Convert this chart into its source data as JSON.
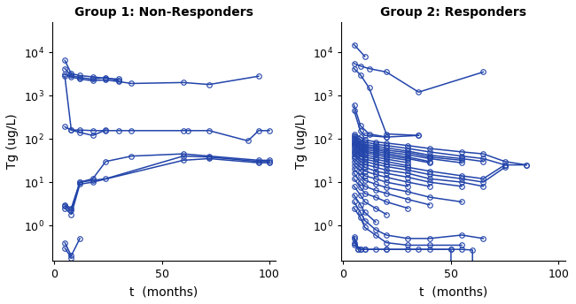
{
  "title1": "Group 1: Non-Responders",
  "title2": "Group 2: Responders",
  "xlabel": "t  (months)",
  "ylabel": "Tg (ug/L)",
  "line_color": "#2244aa",
  "marker": "o",
  "markersize": 4,
  "linewidth": 1.1,
  "ylim_log": [
    0.15,
    50000
  ],
  "xlim": [
    -1,
    103
  ],
  "group1_series": [
    {
      "t": [
        5,
        8,
        12,
        18,
        24,
        30
      ],
      "y": [
        6500,
        3200,
        2900,
        2700,
        2500,
        2400
      ]
    },
    {
      "t": [
        5,
        8,
        12,
        18,
        24,
        30
      ],
      "y": [
        4200,
        2900,
        2600,
        2400,
        2600,
        2200
      ]
    },
    {
      "t": [
        5,
        8,
        12,
        18,
        24,
        30,
        36,
        60,
        72,
        95
      ],
      "y": [
        3100,
        2700,
        2400,
        2200,
        2300,
        2100,
        1900,
        2000,
        1800,
        2800
      ]
    },
    {
      "t": [
        5,
        8,
        12,
        18,
        24
      ],
      "y": [
        2800,
        160,
        140,
        120,
        160
      ]
    },
    {
      "t": [
        5,
        8,
        12,
        18,
        24,
        30,
        36,
        60,
        62,
        72,
        90,
        95,
        100
      ],
      "y": [
        190,
        160,
        160,
        155,
        155,
        155,
        155,
        155,
        155,
        155,
        90,
        155,
        155
      ]
    },
    {
      "t": [
        5,
        8,
        12,
        18,
        24,
        36,
        60,
        72,
        95,
        100
      ],
      "y": [
        3.0,
        2.5,
        10,
        12,
        30,
        40,
        45,
        40,
        32,
        32
      ]
    },
    {
      "t": [
        5,
        8,
        12,
        18,
        24,
        60,
        72,
        95,
        100
      ],
      "y": [
        2.8,
        2.2,
        10,
        11,
        12,
        40,
        38,
        30,
        30
      ]
    },
    {
      "t": [
        5,
        8,
        12,
        18,
        60,
        72,
        95,
        100
      ],
      "y": [
        2.5,
        1.8,
        9,
        10,
        32,
        35,
        28,
        28
      ]
    },
    {
      "t": [
        5,
        8,
        12
      ],
      "y": [
        0.4,
        0.2,
        0.5
      ]
    },
    {
      "t": [
        5,
        8
      ],
      "y": [
        0.3,
        0.18
      ]
    }
  ],
  "group2_series": [
    {
      "t": [
        5,
        10
      ],
      "y": [
        15000,
        8000
      ]
    },
    {
      "t": [
        5,
        8,
        12,
        20,
        35,
        65
      ],
      "y": [
        5500,
        4800,
        4200,
        3500,
        1200,
        3500
      ]
    },
    {
      "t": [
        5,
        8,
        12,
        20,
        35
      ],
      "y": [
        4200,
        3000,
        1500,
        130,
        120
      ]
    },
    {
      "t": [
        5,
        8,
        12,
        20
      ],
      "y": [
        600,
        200,
        130,
        110
      ]
    },
    {
      "t": [
        5,
        8,
        10,
        20,
        35
      ],
      "y": [
        450,
        150,
        120,
        110,
        120
      ]
    },
    {
      "t": [
        5,
        8,
        10,
        15,
        20,
        30,
        40,
        55,
        65,
        75,
        85
      ],
      "y": [
        130,
        110,
        95,
        85,
        80,
        70,
        60,
        50,
        45,
        30,
        25
      ]
    },
    {
      "t": [
        5,
        8,
        10,
        15,
        20,
        30,
        40,
        55,
        65,
        75
      ],
      "y": [
        115,
        95,
        85,
        75,
        70,
        60,
        50,
        40,
        35,
        25
      ]
    },
    {
      "t": [
        5,
        8,
        10,
        15,
        20,
        30,
        40,
        55,
        65
      ],
      "y": [
        105,
        85,
        75,
        68,
        62,
        52,
        42,
        35,
        30
      ]
    },
    {
      "t": [
        5,
        8,
        10,
        15,
        20,
        30,
        40,
        55
      ],
      "y": [
        95,
        78,
        68,
        62,
        55,
        48,
        38,
        32
      ]
    },
    {
      "t": [
        5,
        8,
        10,
        15,
        20,
        30,
        40,
        55
      ],
      "y": [
        88,
        72,
        63,
        57,
        50,
        43,
        35,
        28
      ]
    },
    {
      "t": [
        5,
        8,
        10,
        15,
        20,
        30,
        40
      ],
      "y": [
        80,
        65,
        57,
        52,
        46,
        38,
        30
      ]
    },
    {
      "t": [
        5,
        8,
        10,
        15,
        20,
        30,
        40
      ],
      "y": [
        75,
        60,
        52,
        47,
        42,
        35,
        28
      ]
    },
    {
      "t": [
        5,
        8,
        10,
        15,
        20,
        30
      ],
      "y": [
        68,
        55,
        48,
        43,
        38,
        32
      ]
    },
    {
      "t": [
        5,
        8,
        10,
        15,
        20,
        30
      ],
      "y": [
        62,
        50,
        43,
        38,
        34,
        28
      ]
    },
    {
      "t": [
        5,
        8,
        10,
        15,
        20,
        30
      ],
      "y": [
        55,
        45,
        38,
        34,
        30,
        24
      ]
    },
    {
      "t": [
        5,
        8,
        10,
        15,
        20,
        30,
        40,
        55,
        65,
        75,
        85
      ],
      "y": [
        50,
        40,
        34,
        30,
        26,
        22,
        18,
        14,
        12,
        25,
        25
      ]
    },
    {
      "t": [
        5,
        8,
        10,
        15,
        20,
        30,
        40,
        55,
        65,
        75
      ],
      "y": [
        45,
        35,
        30,
        26,
        23,
        19,
        15,
        12,
        10,
        22
      ]
    },
    {
      "t": [
        5,
        8,
        10,
        15,
        20,
        30,
        40,
        55,
        65
      ],
      "y": [
        40,
        30,
        26,
        22,
        19,
        16,
        12,
        10,
        8
      ]
    },
    {
      "t": [
        5,
        8,
        10,
        15,
        20,
        30,
        40,
        55
      ],
      "y": [
        35,
        26,
        22,
        18,
        16,
        13,
        10,
        8
      ]
    },
    {
      "t": [
        5,
        8,
        10,
        15,
        20,
        30,
        40
      ],
      "y": [
        30,
        22,
        18,
        15,
        13,
        10,
        8
      ]
    },
    {
      "t": [
        5,
        8,
        10,
        15,
        20,
        30
      ],
      "y": [
        25,
        18,
        14,
        12,
        10,
        8
      ]
    },
    {
      "t": [
        5,
        8,
        10,
        15,
        20,
        30,
        40,
        55
      ],
      "y": [
        20,
        14,
        11,
        9,
        7.5,
        6,
        4.5,
        3.5
      ]
    },
    {
      "t": [
        5,
        8,
        10,
        15,
        20,
        30,
        40
      ],
      "y": [
        16,
        10,
        8,
        6.5,
        5.5,
        4,
        3
      ]
    },
    {
      "t": [
        5,
        8,
        10,
        15,
        20,
        30
      ],
      "y": [
        12,
        7.5,
        5.5,
        4.5,
        3.5,
        2.5
      ]
    },
    {
      "t": [
        5,
        8,
        10,
        15,
        20
      ],
      "y": [
        8,
        5,
        3.5,
        2.5,
        1.8
      ]
    },
    {
      "t": [
        5,
        8,
        10,
        15
      ],
      "y": [
        5,
        3,
        2,
        1.2
      ]
    },
    {
      "t": [
        5,
        8,
        10,
        15,
        20,
        30,
        40,
        55,
        65
      ],
      "y": [
        3.5,
        2,
        1.3,
        0.8,
        0.6,
        0.5,
        0.5,
        0.6,
        0.5
      ]
    },
    {
      "t": [
        5,
        8,
        10,
        15,
        20,
        30,
        40,
        55
      ],
      "y": [
        2.5,
        1.5,
        0.9,
        0.6,
        0.4,
        0.35,
        0.35,
        0.35
      ]
    },
    {
      "t": [
        5,
        8,
        10,
        15,
        20,
        30,
        40,
        50,
        55,
        60,
        65
      ],
      "y": [
        0.35,
        0.28,
        0.28,
        0.28,
        0.28,
        0.28,
        0.28,
        0.28,
        0.28,
        0.27,
        0.0
      ]
    },
    {
      "t": [
        5,
        8,
        10,
        20,
        35,
        50,
        55
      ],
      "y": [
        0.4,
        0.28,
        0.28,
        0.28,
        0.28,
        0.28,
        0.0
      ]
    },
    {
      "t": [
        5,
        7
      ],
      "y": [
        0.55,
        0.28
      ]
    },
    {
      "t": [
        5,
        7
      ],
      "y": [
        0.5,
        0.28
      ]
    }
  ]
}
